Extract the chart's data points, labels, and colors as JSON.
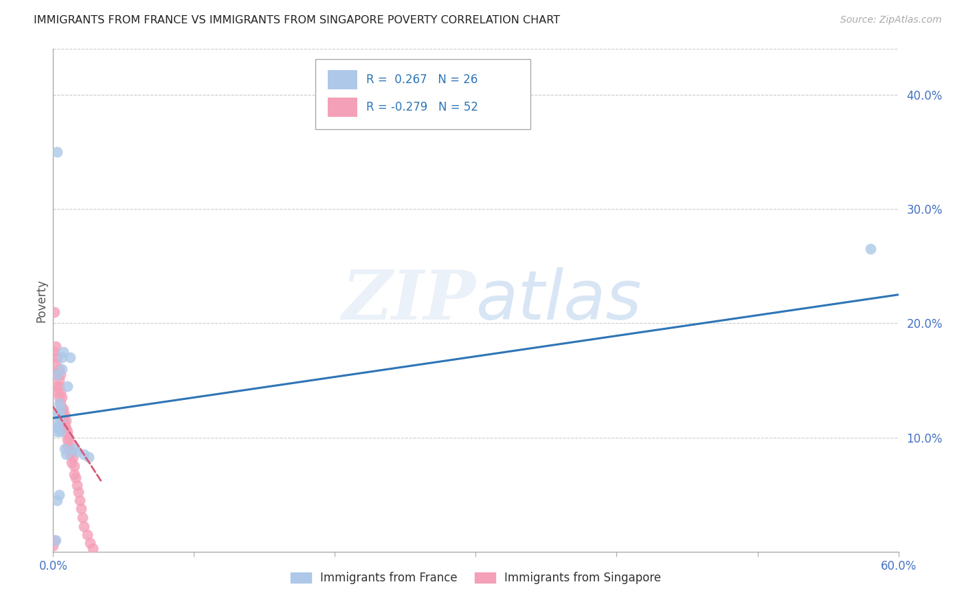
{
  "title": "IMMIGRANTS FROM FRANCE VS IMMIGRANTS FROM SINGAPORE POVERTY CORRELATION CHART",
  "source": "Source: ZipAtlas.com",
  "ylabel": "Poverty",
  "xlim": [
    0.0,
    0.6
  ],
  "ylim": [
    0.0,
    0.44
  ],
  "yticks": [
    0.1,
    0.2,
    0.3,
    0.4
  ],
  "ytick_labels": [
    "10.0%",
    "20.0%",
    "30.0%",
    "40.0%"
  ],
  "xtick_positions": [
    0.0,
    0.1,
    0.2,
    0.3,
    0.4,
    0.5,
    0.6
  ],
  "france_color": "#adc8e8",
  "singapore_color": "#f4a0b8",
  "france_line_color": "#2E75B6",
  "singapore_line_color": "#d45b7a",
  "france_r": 0.267,
  "france_n": 26,
  "singapore_r": -0.279,
  "singapore_n": 52,
  "watermark_zip": "ZIP",
  "watermark_atlas": "atlas",
  "france_x": [
    0.003,
    0.006,
    0.003,
    0.004,
    0.004,
    0.005,
    0.003,
    0.006,
    0.007,
    0.003,
    0.003,
    0.004,
    0.003,
    0.005,
    0.01,
    0.012,
    0.008,
    0.009,
    0.015,
    0.017,
    0.022,
    0.025,
    0.004,
    0.003,
    0.58,
    0.002
  ],
  "france_y": [
    0.12,
    0.16,
    0.155,
    0.13,
    0.12,
    0.125,
    0.108,
    0.17,
    0.175,
    0.35,
    0.105,
    0.115,
    0.11,
    0.105,
    0.145,
    0.17,
    0.09,
    0.085,
    0.09,
    0.088,
    0.085,
    0.083,
    0.05,
    0.045,
    0.265,
    0.01
  ],
  "singapore_x": [
    0.001,
    0.001,
    0.002,
    0.002,
    0.002,
    0.003,
    0.003,
    0.003,
    0.003,
    0.004,
    0.004,
    0.004,
    0.004,
    0.005,
    0.005,
    0.005,
    0.005,
    0.006,
    0.006,
    0.006,
    0.007,
    0.007,
    0.007,
    0.008,
    0.008,
    0.008,
    0.009,
    0.009,
    0.01,
    0.01,
    0.01,
    0.011,
    0.011,
    0.012,
    0.012,
    0.013,
    0.013,
    0.014,
    0.015,
    0.015,
    0.016,
    0.017,
    0.018,
    0.019,
    0.02,
    0.021,
    0.022,
    0.024,
    0.026,
    0.028,
    0.0,
    0.001
  ],
  "singapore_y": [
    0.21,
    0.175,
    0.18,
    0.165,
    0.155,
    0.17,
    0.155,
    0.145,
    0.14,
    0.16,
    0.15,
    0.145,
    0.135,
    0.155,
    0.14,
    0.13,
    0.125,
    0.135,
    0.125,
    0.115,
    0.125,
    0.118,
    0.11,
    0.12,
    0.112,
    0.105,
    0.115,
    0.108,
    0.105,
    0.098,
    0.092,
    0.1,
    0.09,
    0.095,
    0.085,
    0.088,
    0.078,
    0.082,
    0.075,
    0.068,
    0.065,
    0.058,
    0.052,
    0.045,
    0.038,
    0.03,
    0.022,
    0.015,
    0.008,
    0.003,
    0.005,
    0.01
  ],
  "france_trend_x": [
    0.0,
    0.6
  ],
  "france_trend_y": [
    0.117,
    0.225
  ],
  "singapore_trend_x": [
    0.0,
    0.035
  ],
  "singapore_trend_y": [
    0.127,
    0.06
  ]
}
